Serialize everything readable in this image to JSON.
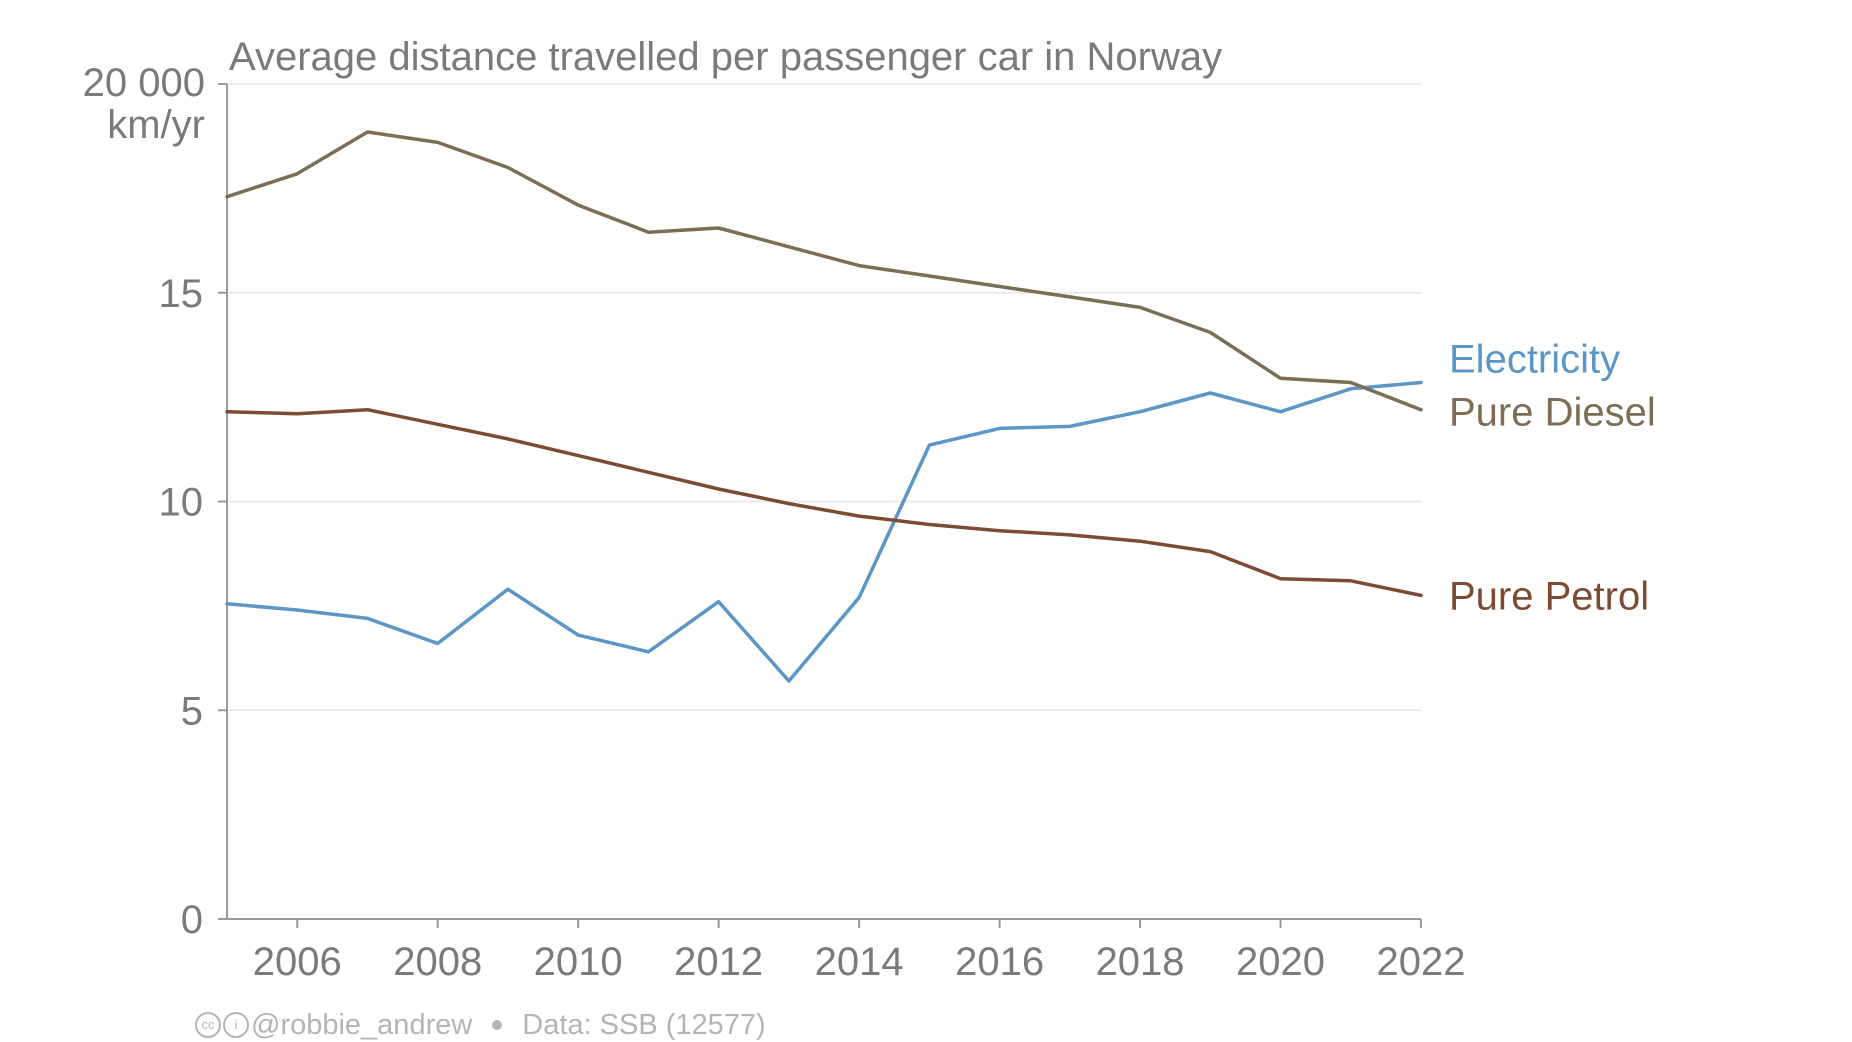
{
  "chart_data": {
    "type": "line",
    "title": "Average distance travelled per passenger car in Norway",
    "y_top_label": "20 000",
    "y_unit": "km/yr",
    "ylim": [
      0,
      20000
    ],
    "xlim": [
      2005,
      2022
    ],
    "y_ticks": [
      {
        "value": 0,
        "label": "0"
      },
      {
        "value": 5000,
        "label": "5"
      },
      {
        "value": 10000,
        "label": "10"
      },
      {
        "value": 15000,
        "label": "15"
      }
    ],
    "x_ticks": [
      {
        "value": 2006,
        "label": "2006"
      },
      {
        "value": 2008,
        "label": "2008"
      },
      {
        "value": 2010,
        "label": "2010"
      },
      {
        "value": 2012,
        "label": "2012"
      },
      {
        "value": 2014,
        "label": "2014"
      },
      {
        "value": 2016,
        "label": "2016"
      },
      {
        "value": 2018,
        "label": "2018"
      },
      {
        "value": 2020,
        "label": "2020"
      },
      {
        "value": 2022,
        "label": "2022"
      }
    ],
    "grid": "horizontal",
    "x": [
      2005,
      2006,
      2007,
      2008,
      2009,
      2010,
      2011,
      2012,
      2013,
      2014,
      2015,
      2016,
      2017,
      2018,
      2019,
      2020,
      2021,
      2022
    ],
    "series": [
      {
        "name": "Electricity",
        "color": "#5b96c5",
        "values": [
          7550,
          7400,
          7200,
          6600,
          7900,
          6800,
          6400,
          7600,
          5700,
          7700,
          11350,
          11750,
          11800,
          12150,
          12600,
          12150,
          12700,
          12850
        ]
      },
      {
        "name": "Pure Diesel",
        "color": "#7b6e54",
        "values": [
          17300,
          17850,
          18850,
          18600,
          18000,
          17100,
          16450,
          16550,
          16100,
          15650,
          15400,
          15150,
          14900,
          14650,
          14050,
          12950,
          12850,
          12200
        ]
      },
      {
        "name": "Pure Petrol",
        "color": "#7b4c33",
        "values": [
          12150,
          12100,
          12200,
          11850,
          11500,
          11100,
          10700,
          10300,
          9950,
          9650,
          9450,
          9300,
          9200,
          9050,
          8800,
          8150,
          8100,
          7750
        ]
      }
    ]
  },
  "footer": {
    "cc_glyph": "cc",
    "by_glyph": "i",
    "author": "@robbie_andrew",
    "source": "Data: SSB (12577)"
  }
}
